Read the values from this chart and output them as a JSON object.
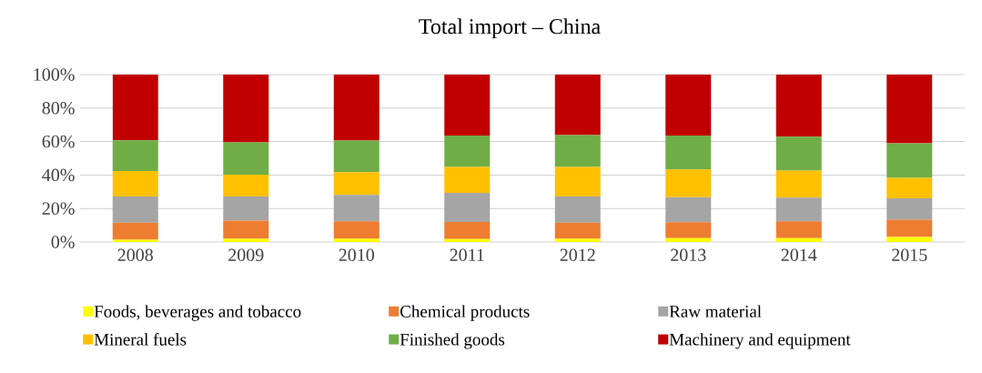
{
  "chart_data": {
    "type": "bar",
    "title": "Total import – China",
    "stacked": true,
    "grid": "y",
    "legend": "bottom",
    "categories": [
      "2008",
      "2009",
      "2010",
      "2011",
      "2012",
      "2013",
      "2014",
      "2015"
    ],
    "ylim": [
      0,
      100
    ],
    "yticks": [
      {
        "value": 0,
        "label": "0%"
      },
      {
        "value": 20,
        "label": "20%"
      },
      {
        "value": 40,
        "label": "40%"
      },
      {
        "value": 60,
        "label": "60%"
      },
      {
        "value": 80,
        "label": "80%"
      },
      {
        "value": 100,
        "label": "100%"
      }
    ],
    "series": [
      {
        "name": "Foods, beverages and tobacco",
        "color": "#ffff00",
        "values": [
          1.3,
          1.9,
          1.9,
          1.7,
          1.9,
          2.3,
          2.3,
          3.0
        ]
      },
      {
        "name": "Chemical products",
        "color": "#ed7d31",
        "values": [
          10.3,
          10.9,
          10.5,
          10.3,
          9.7,
          9.5,
          10.1,
          10.3
        ]
      },
      {
        "name": "Raw material",
        "color": "#a5a5a5",
        "values": [
          15.6,
          14.4,
          15.7,
          17.3,
          15.6,
          15.0,
          14.1,
          12.8
        ]
      },
      {
        "name": "Mineral fuels",
        "color": "#ffc000",
        "values": [
          15.2,
          13.0,
          13.6,
          15.5,
          17.6,
          16.5,
          16.1,
          12.2
        ]
      },
      {
        "name": "Finished goods",
        "color": "#70ad47",
        "values": [
          18.4,
          19.3,
          18.9,
          18.8,
          19.0,
          20.3,
          20.3,
          20.6
        ]
      },
      {
        "name": "Machinery and equipment",
        "color": "#c00000",
        "values": [
          39.2,
          40.5,
          39.4,
          36.4,
          36.2,
          36.4,
          37.1,
          41.1
        ]
      }
    ]
  }
}
